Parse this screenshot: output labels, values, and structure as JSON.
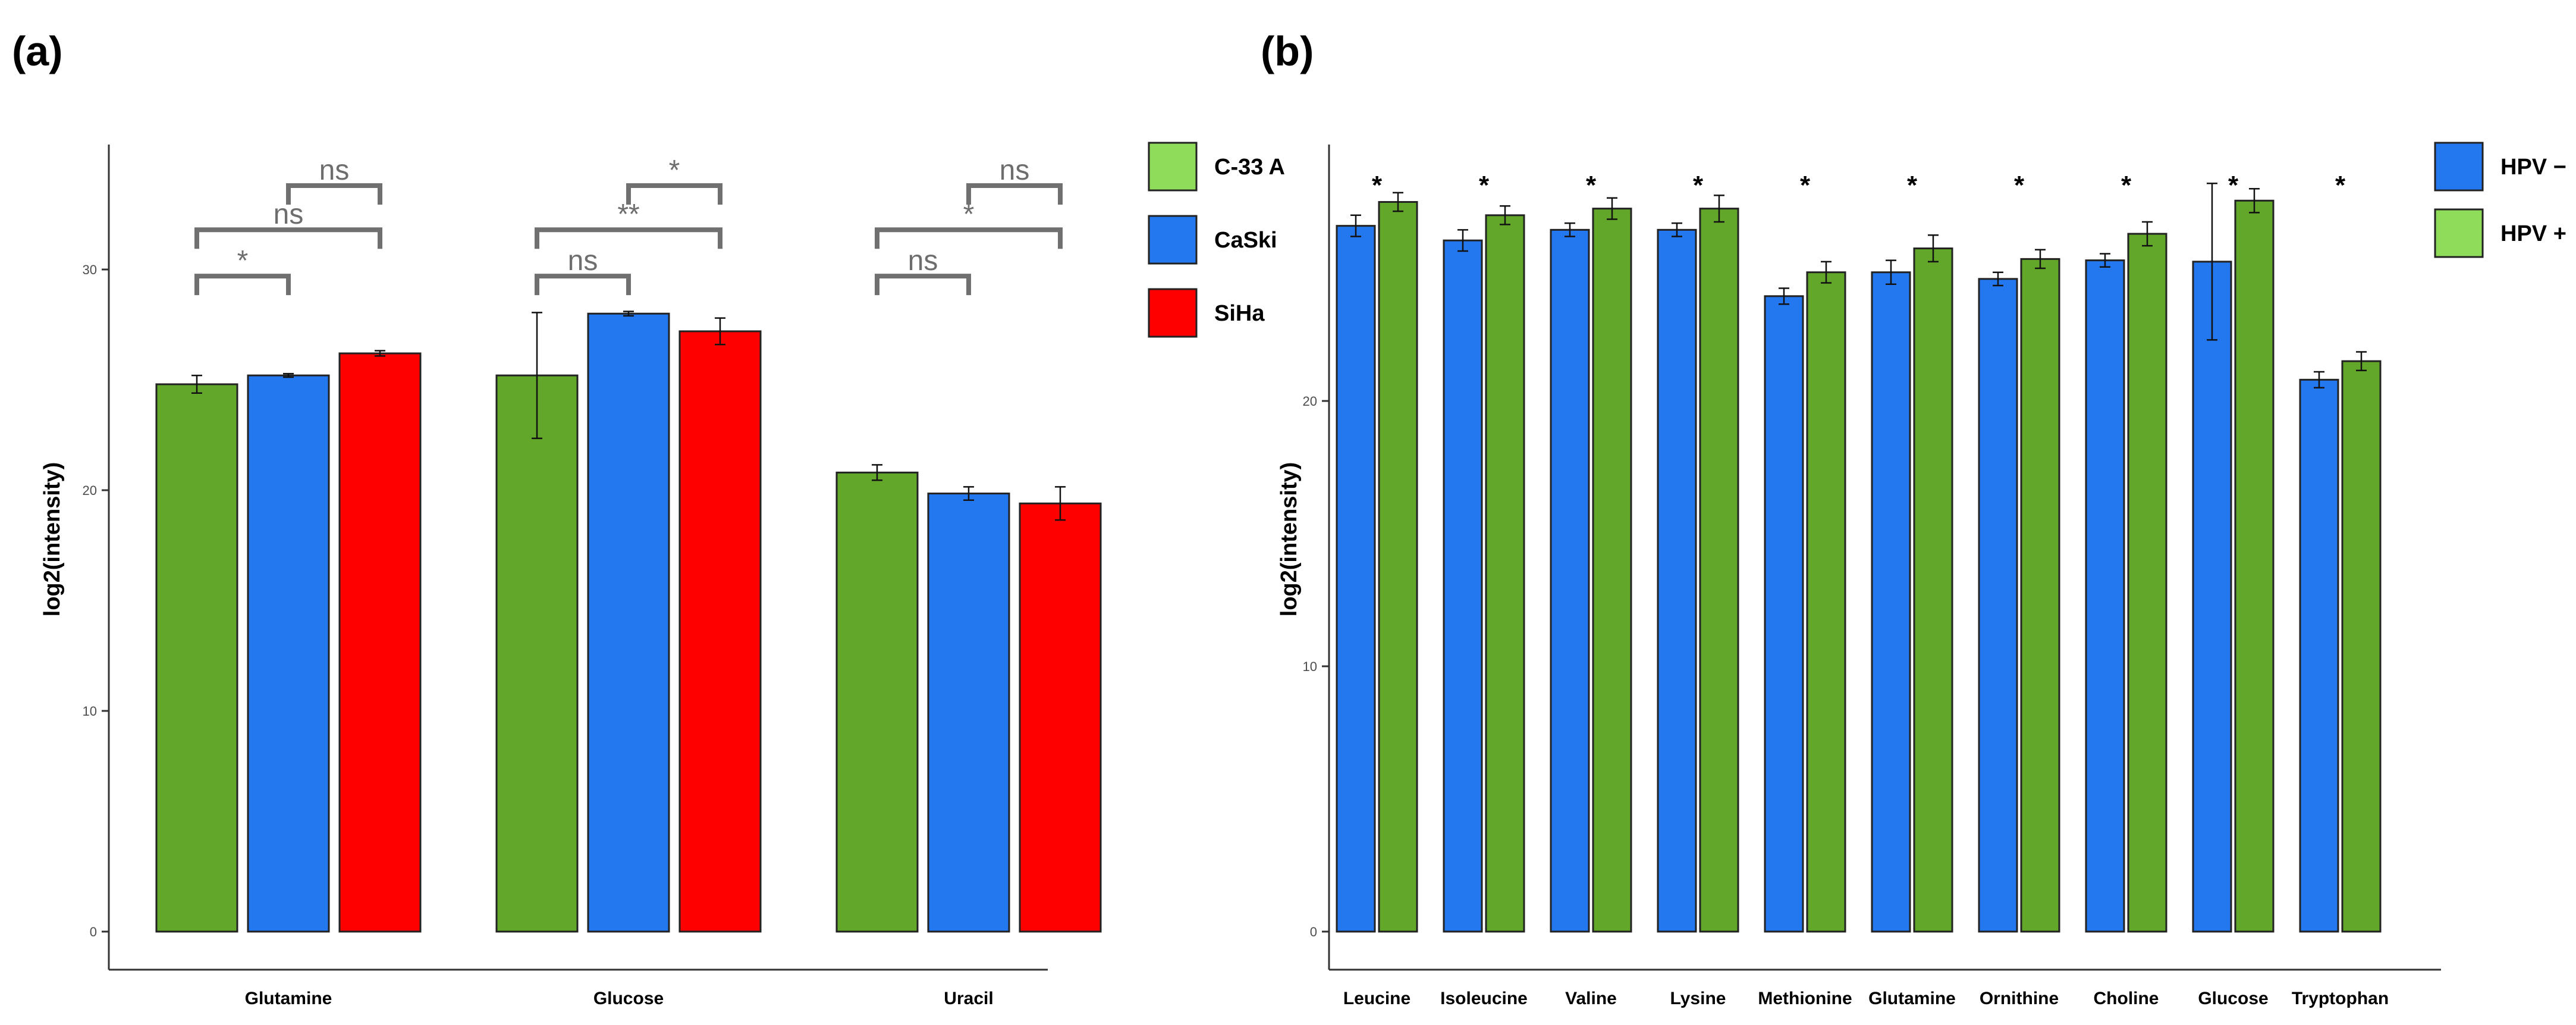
{
  "chart_data": [
    {
      "panel": "(a)",
      "type": "bar",
      "ylabel": "log2(intensity)",
      "ylim": [
        0,
        35.5
      ],
      "yticks": [
        0,
        10,
        20,
        30
      ],
      "categories": [
        "Glutamine",
        "Glucose",
        "Uracil"
      ],
      "legend_position": "right",
      "series": [
        {
          "name": "C-33 A",
          "color": "#62a72a",
          "values": [
            24.8,
            25.2,
            20.8
          ],
          "errors": [
            0.4,
            2.85,
            0.35
          ]
        },
        {
          "name": "CaSki",
          "color": "#2478ef",
          "values": [
            25.2,
            28.0,
            19.85
          ],
          "errors": [
            0.08,
            0.1,
            0.3
          ]
        },
        {
          "name": "SiHa",
          "color": "#ff0000",
          "values": [
            26.2,
            27.2,
            19.4
          ],
          "errors": [
            0.12,
            0.6,
            0.75
          ]
        }
      ],
      "significance": [
        {
          "category": 0,
          "from": 0,
          "to": 1,
          "label": "*",
          "level": 29.7
        },
        {
          "category": 0,
          "from": 0,
          "to": 2,
          "label": "ns",
          "level": 31.8
        },
        {
          "category": 0,
          "from": 1,
          "to": 2,
          "label": "ns",
          "level": 33.8
        },
        {
          "category": 1,
          "from": 0,
          "to": 1,
          "label": "ns",
          "level": 29.7
        },
        {
          "category": 1,
          "from": 0,
          "to": 2,
          "label": "**",
          "level": 31.8
        },
        {
          "category": 1,
          "from": 1,
          "to": 2,
          "label": "*",
          "level": 33.8
        },
        {
          "category": 2,
          "from": 0,
          "to": 1,
          "label": "ns",
          "level": 29.7
        },
        {
          "category": 2,
          "from": 0,
          "to": 2,
          "label": "*",
          "level": 31.8
        },
        {
          "category": 2,
          "from": 1,
          "to": 2,
          "label": "ns",
          "level": 33.8
        }
      ]
    },
    {
      "panel": "(b)",
      "type": "bar",
      "ylabel": "log2(intensity)",
      "ylim": [
        0,
        29.6
      ],
      "yticks": [
        0,
        10,
        20
      ],
      "categories": [
        "Leucine",
        "Isoleucine",
        "Valine",
        "Lysine",
        "Methionine",
        "Glutamine",
        "Ornithine",
        "Choline",
        "Glucose",
        "Tryptophan"
      ],
      "legend_position": "right",
      "series": [
        {
          "name": "HPV −",
          "color": "#2478ef",
          "values": [
            26.6,
            26.05,
            26.45,
            26.45,
            23.95,
            24.85,
            24.6,
            25.3,
            25.25,
            20.8
          ],
          "errors": [
            0.4,
            0.4,
            0.25,
            0.25,
            0.3,
            0.45,
            0.25,
            0.25,
            2.95,
            0.3
          ]
        },
        {
          "name": "HPV +",
          "color": "#62a72a",
          "values": [
            27.5,
            27.0,
            27.25,
            27.25,
            24.85,
            25.75,
            25.35,
            26.3,
            27.55,
            21.5
          ],
          "errors": [
            0.35,
            0.35,
            0.4,
            0.5,
            0.4,
            0.5,
            0.35,
            0.45,
            0.45,
            0.35
          ]
        }
      ],
      "significance": [
        {
          "category": 0,
          "label": "*"
        },
        {
          "category": 1,
          "label": "*"
        },
        {
          "category": 2,
          "label": "*"
        },
        {
          "category": 3,
          "label": "*"
        },
        {
          "category": 4,
          "label": "*"
        },
        {
          "category": 5,
          "label": "*"
        },
        {
          "category": 6,
          "label": "*"
        },
        {
          "category": 7,
          "label": "*"
        },
        {
          "category": 8,
          "label": "*"
        },
        {
          "category": 9,
          "label": "*"
        }
      ]
    }
  ]
}
